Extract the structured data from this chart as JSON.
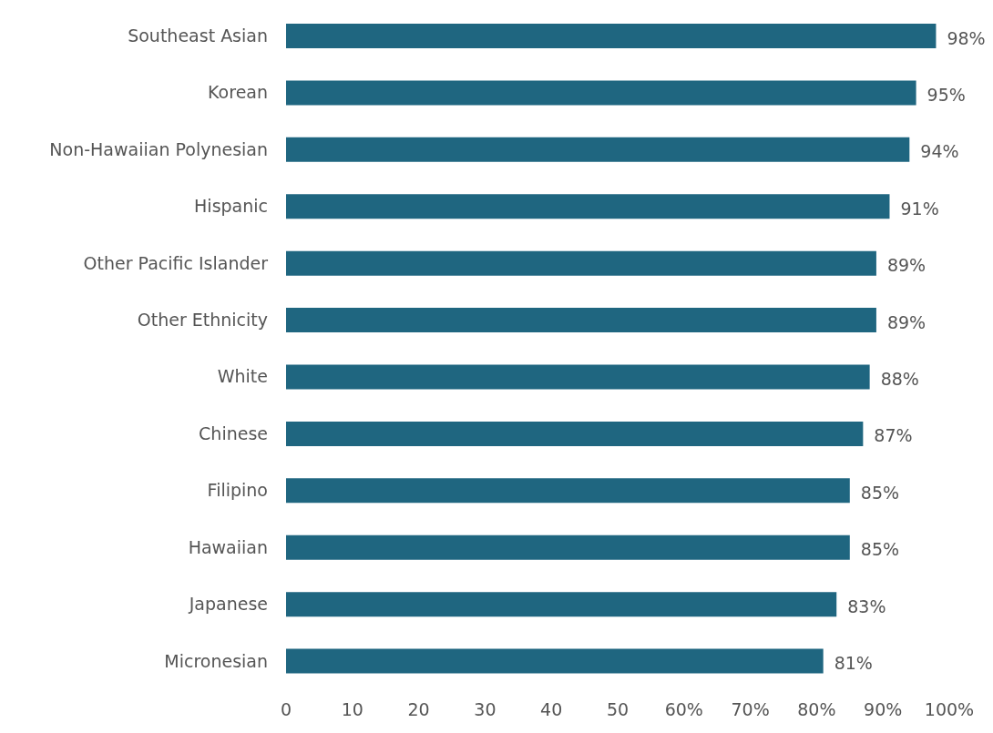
{
  "chart_data": {
    "type": "bar",
    "orientation": "horizontal",
    "categories": [
      "Southeast Asian",
      "Korean",
      "Non-Hawaiian Polynesian",
      "Hispanic",
      "Other Pacific Islander",
      "Other Ethnicity",
      "White",
      "Chinese",
      "Filipino",
      "Hawaiian",
      "Japanese",
      "Micronesian"
    ],
    "values": [
      98,
      95,
      94,
      91,
      89,
      89,
      88,
      87,
      85,
      85,
      83,
      81
    ],
    "value_labels": [
      "98%",
      "95%",
      "94%",
      "91%",
      "89%",
      "89%",
      "88%",
      "87%",
      "85%",
      "85%",
      "83%",
      "81%"
    ],
    "color": "#1f6680",
    "xlim": [
      0,
      100
    ],
    "xticks": [
      0,
      10,
      20,
      30,
      40,
      50,
      {
        "value": 60,
        "label": "60%"
      },
      {
        "value": 70,
        "label": "70%"
      },
      {
        "value": 80,
        "label": "80%"
      },
      {
        "value": 90,
        "label": "90%"
      },
      {
        "value": 100,
        "label": "100%"
      }
    ],
    "grid": false,
    "legend": false
  }
}
